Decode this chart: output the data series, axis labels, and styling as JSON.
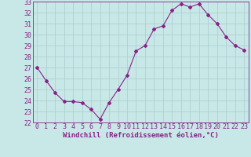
{
  "x": [
    0,
    1,
    2,
    3,
    4,
    5,
    6,
    7,
    8,
    9,
    10,
    11,
    12,
    13,
    14,
    15,
    16,
    17,
    18,
    19,
    20,
    21,
    22,
    23
  ],
  "y": [
    27.0,
    25.8,
    24.7,
    23.9,
    23.9,
    23.8,
    23.2,
    22.3,
    23.8,
    25.0,
    26.3,
    28.5,
    29.0,
    30.5,
    30.8,
    32.2,
    32.8,
    32.5,
    32.8,
    31.8,
    31.0,
    29.8,
    29.0,
    28.6
  ],
  "line_color": "#882288",
  "marker": "D",
  "marker_size": 2.0,
  "bg_color": "#c8e8e8",
  "grid_color": "#aacccc",
  "xlabel": "Windchill (Refroidissement éolien,°C)",
  "ylabel": "",
  "title": "",
  "ylim": [
    22,
    33
  ],
  "xlim": [
    -0.5,
    23.5
  ],
  "yticks": [
    22,
    23,
    24,
    25,
    26,
    27,
    28,
    29,
    30,
    31,
    32,
    33
  ],
  "xticks": [
    0,
    1,
    2,
    3,
    4,
    5,
    6,
    7,
    8,
    9,
    10,
    11,
    12,
    13,
    14,
    15,
    16,
    17,
    18,
    19,
    20,
    21,
    22,
    23
  ],
  "xlabel_color": "#882288",
  "tick_color": "#882288",
  "xlabel_fontsize": 6.5,
  "tick_fontsize": 6.0,
  "spine_color": "#882288",
  "line_width": 0.8
}
